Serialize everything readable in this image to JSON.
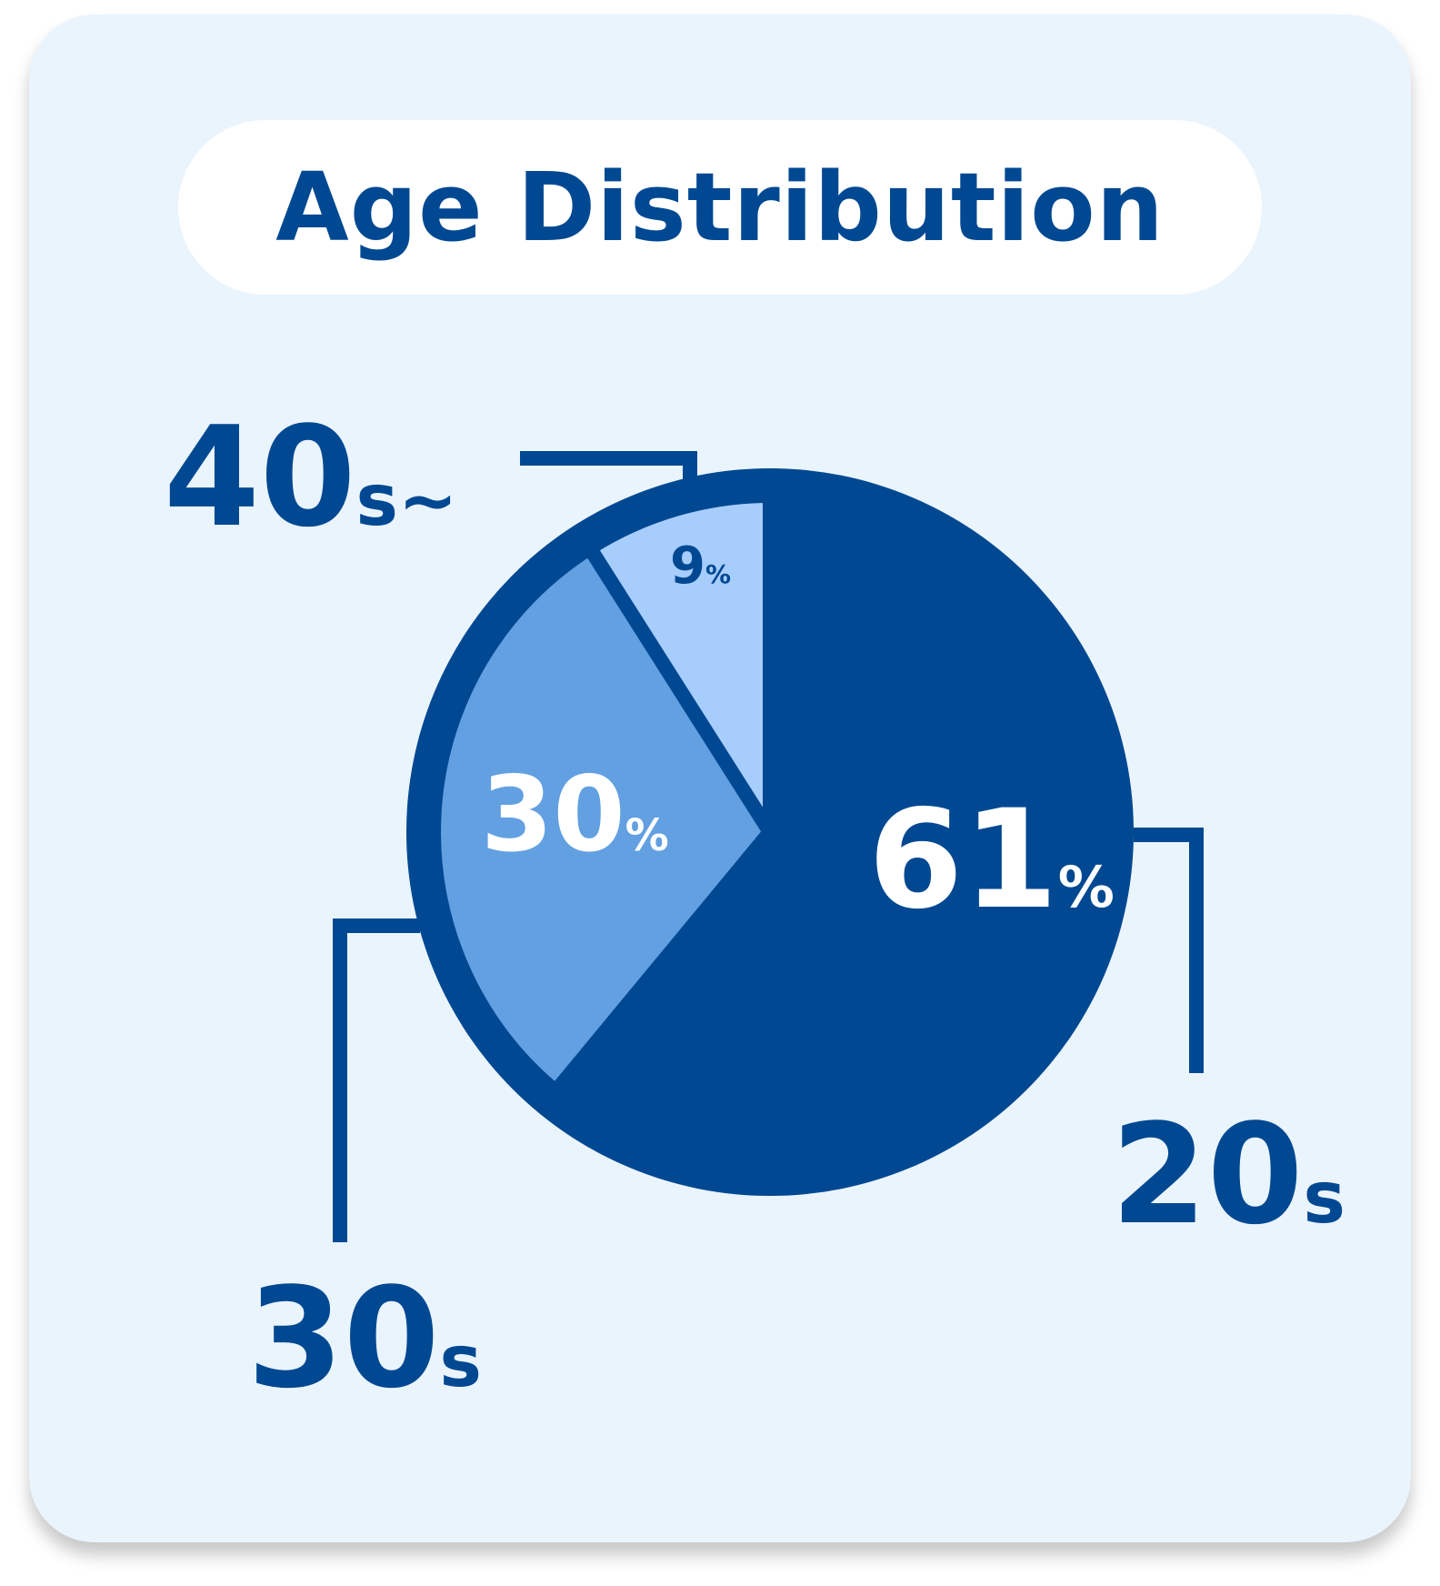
{
  "title": "Age Distribution",
  "colors": {
    "card_bg": "#eaf4fd",
    "dark": "#004892",
    "medium": "#62a0e2",
    "light": "#a6cdfc",
    "white": "#ffffff"
  },
  "chart_data": {
    "type": "pie",
    "title": "Age Distribution",
    "slices": [
      {
        "label": "20s",
        "value": 61,
        "value_label": "61",
        "unit": "%",
        "color": "#004892",
        "text_color": "#ffffff"
      },
      {
        "label": "30s",
        "value": 30,
        "value_label": "30",
        "unit": "%",
        "color": "#62a0e2",
        "text_color": "#ffffff"
      },
      {
        "label": "40s~",
        "value": 9,
        "value_label": "9",
        "unit": "%",
        "color": "#a6cdfc",
        "text_color": "#004892"
      }
    ]
  },
  "labels": {
    "s20": {
      "num": "20",
      "suffix": "s"
    },
    "s30": {
      "num": "30",
      "suffix": "s"
    },
    "s40": {
      "num": "40",
      "suffix": "s~"
    }
  }
}
